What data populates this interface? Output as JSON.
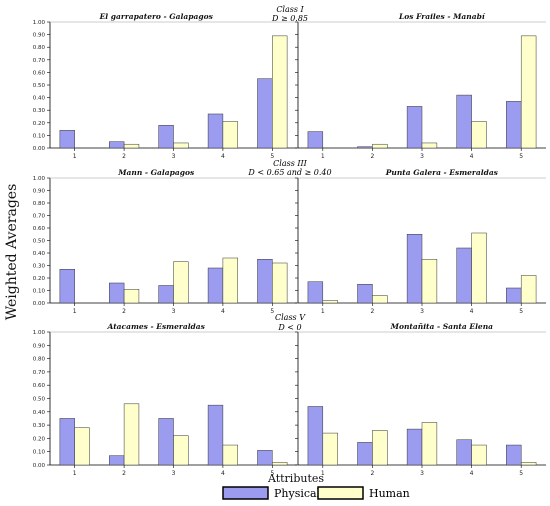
{
  "figure": {
    "ylabel": "Weighted Averages",
    "xlabel": "Attributes",
    "legend": [
      {
        "name": "Physical",
        "color": "#9b9bf0"
      },
      {
        "name": "Human",
        "color": "#ffffcc"
      }
    ],
    "rows": [
      {
        "class_label": "Class I",
        "condition": "D ≥ 0.85"
      },
      {
        "class_label": "Class III",
        "condition": "D < 0.65 and ≥ 0.40"
      },
      {
        "class_label": "Class V",
        "condition": "D < 0"
      }
    ]
  },
  "chart_data": [
    {
      "type": "bar",
      "title": "El garrapatero - Galapagos",
      "categories": [
        "1",
        "2",
        "3",
        "4",
        "5"
      ],
      "ylim": [
        0,
        1.0
      ],
      "yticks": [
        "0.00",
        "0.10",
        "0.20",
        "0.30",
        "0.40",
        "0.50",
        "0.60",
        "0.70",
        "0.80",
        "0.90",
        "1.00"
      ],
      "series": [
        {
          "name": "Physical",
          "values": [
            0.14,
            0.05,
            0.18,
            0.27,
            0.55
          ]
        },
        {
          "name": "Human",
          "values": [
            0.0,
            0.03,
            0.04,
            0.21,
            0.89
          ]
        }
      ]
    },
    {
      "type": "bar",
      "title": "Los Frailes - Manabí",
      "categories": [
        "1",
        "2",
        "3",
        "4",
        "5"
      ],
      "ylim": [
        0,
        1.0
      ],
      "yticks": [],
      "series": [
        {
          "name": "Physical",
          "values": [
            0.13,
            0.01,
            0.33,
            0.42,
            0.37
          ]
        },
        {
          "name": "Human",
          "values": [
            0.0,
            0.03,
            0.04,
            0.21,
            0.89
          ]
        }
      ]
    },
    {
      "type": "bar",
      "title": "Mann - Galapagos",
      "categories": [
        "1",
        "2",
        "3",
        "4",
        "5"
      ],
      "ylim": [
        0,
        1.0
      ],
      "yticks": [
        "0.00",
        "0.10",
        "0.20",
        "0.30",
        "0.40",
        "0.50",
        "0.60",
        "0.70",
        "0.80",
        "0.90",
        "1.00"
      ],
      "series": [
        {
          "name": "Physical",
          "values": [
            0.27,
            0.16,
            0.14,
            0.28,
            0.35
          ]
        },
        {
          "name": "Human",
          "values": [
            0.0,
            0.11,
            0.33,
            0.36,
            0.32
          ]
        }
      ]
    },
    {
      "type": "bar",
      "title": "Punta Galera - Esmeraldas",
      "categories": [
        "1",
        "2",
        "3",
        "4",
        "5"
      ],
      "ylim": [
        0,
        1.0
      ],
      "yticks": [],
      "series": [
        {
          "name": "Physical",
          "values": [
            0.17,
            0.15,
            0.55,
            0.44,
            0.12
          ]
        },
        {
          "name": "Human",
          "values": [
            0.02,
            0.06,
            0.35,
            0.56,
            0.22
          ]
        }
      ]
    },
    {
      "type": "bar",
      "title": "Atacames - Esmeraldas",
      "categories": [
        "1",
        "2",
        "3",
        "4",
        "5"
      ],
      "ylim": [
        0,
        1.0
      ],
      "yticks": [
        "0.00",
        "0.10",
        "0.20",
        "0.30",
        "0.40",
        "0.50",
        "0.60",
        "0.70",
        "0.80",
        "0.90",
        "1.00"
      ],
      "series": [
        {
          "name": "Physical",
          "values": [
            0.35,
            0.07,
            0.35,
            0.45,
            0.11
          ]
        },
        {
          "name": "Human",
          "values": [
            0.28,
            0.46,
            0.22,
            0.15,
            0.02
          ]
        }
      ]
    },
    {
      "type": "bar",
      "title": "Montañita - Santa Elena",
      "categories": [
        "1",
        "2",
        "3",
        "4",
        "5"
      ],
      "ylim": [
        0,
        1.0
      ],
      "yticks": [],
      "series": [
        {
          "name": "Physical",
          "values": [
            0.44,
            0.17,
            0.27,
            0.19,
            0.15
          ]
        },
        {
          "name": "Human",
          "values": [
            0.24,
            0.26,
            0.32,
            0.15,
            0.02
          ]
        }
      ]
    }
  ]
}
